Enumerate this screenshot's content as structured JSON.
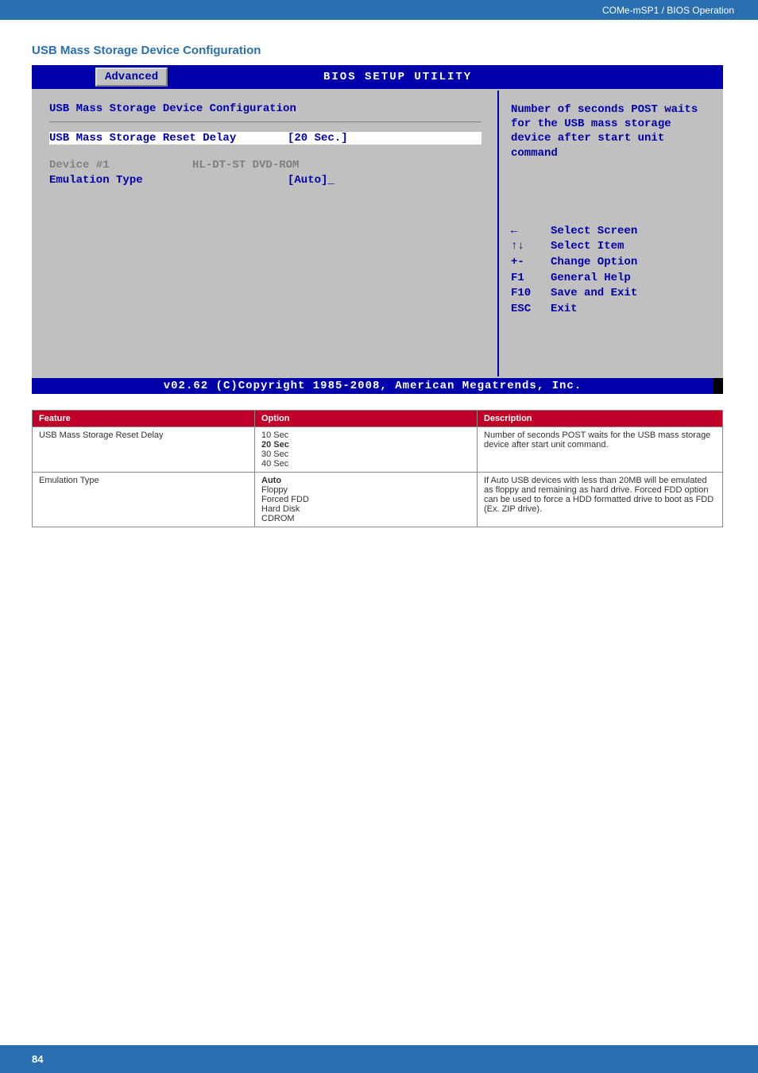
{
  "header": {
    "breadcrumb": "COMe-mSP1 / BIOS Operation"
  },
  "section_title": "USB Mass Storage Device Configuration",
  "bios": {
    "title": "BIOS SETUP UTILITY",
    "tab": "Advanced",
    "heading": "USB Mass Storage Device Configuration",
    "rows": [
      {
        "label": "USB Mass Storage Reset Delay",
        "value": "[20 Sec.]",
        "highlighted": true
      },
      {
        "label": "Device #1",
        "value": "HL-DT-ST DVD-ROM",
        "dim": true
      },
      {
        "label": "Emulation Type",
        "value": "[Auto]_",
        "active": true
      }
    ],
    "help_text": "Number of seconds POST waits for the USB mass storage device after start unit command",
    "keys": [
      {
        "key": "←",
        "action": "Select Screen"
      },
      {
        "key": "↑↓",
        "action": "Select Item"
      },
      {
        "key": "+-",
        "action": "Change Option"
      },
      {
        "key": "F1",
        "action": "General Help"
      },
      {
        "key": "F10",
        "action": "Save and Exit"
      },
      {
        "key": "ESC",
        "action": "Exit"
      }
    ],
    "footer": "v02.62 (C)Copyright 1985-2008, American Megatrends, Inc."
  },
  "table": {
    "headers": [
      "Feature",
      "Option",
      "Description"
    ],
    "rows": [
      {
        "feature": "USB Mass Storage Reset Delay",
        "options": [
          "10 Sec",
          "20 Sec",
          "30 Sec",
          "40 Sec"
        ],
        "bold_option_index": 1,
        "description": "Number of seconds POST waits for the USB mass storage device after start unit command."
      },
      {
        "feature": "Emulation Type",
        "options": [
          "Auto",
          "Floppy",
          "Forced FDD",
          "Hard Disk",
          "CDROM"
        ],
        "bold_option_index": 0,
        "description": "If Auto USB devices with less than 20MB will be emulated as floppy and remaining as hard drive. Forced FDD option can be used to force a HDD formatted drive to boot as FDD (Ex. ZIP drive)."
      }
    ]
  },
  "page_number": "84",
  "colors": {
    "header_bg": "#2a6fb0",
    "accent": "#c1002a",
    "bios_blue": "#0000aa",
    "bios_gray": "#c0c0c0"
  }
}
